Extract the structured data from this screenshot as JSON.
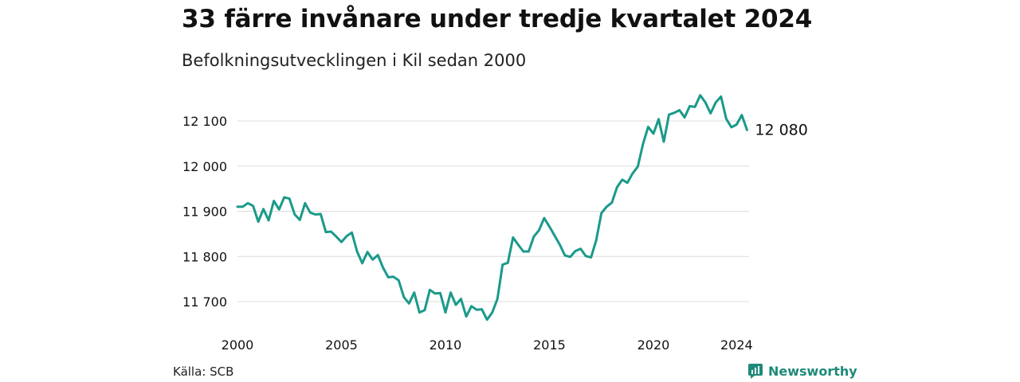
{
  "title": "33 färre invånare under tredje kvartalet 2024",
  "subtitle": "Befolkningsutvecklingen i Kil sedan 2000",
  "source": "Källa: SCB",
  "brand": {
    "name": "Newsworthy",
    "color": "#1f8a7a"
  },
  "chart_data": {
    "type": "line",
    "title": "33 färre invånare under tredje kvartalet 2024",
    "subtitle": "Befolkningsutvecklingen i Kil sedan 2000",
    "xlabel": "",
    "ylabel": "",
    "x_ticks": [
      "2000",
      "2005",
      "2010",
      "2015",
      "2020",
      "2024"
    ],
    "y_ticks": [
      "11 700",
      "11 800",
      "11 900",
      "12 000",
      "12 100"
    ],
    "xlim": [
      2000,
      2024.6
    ],
    "ylim": [
      11660,
      12180
    ],
    "grid": true,
    "line_color": "#1a9a8a",
    "end_label": "12 080",
    "series": [
      {
        "x": [
          2000,
          2000.25,
          2000.5,
          2000.75,
          2001,
          2001.25,
          2001.5,
          2001.75,
          2002,
          2002.25,
          2002.5,
          2002.75,
          2003,
          2003.25,
          2003.5,
          2003.75,
          2004,
          2004.25,
          2004.5,
          2004.75,
          2005,
          2005.25,
          2005.5,
          2005.75,
          2006,
          2006.25,
          2006.5,
          2006.75,
          2007,
          2007.25,
          2007.5,
          2007.75,
          2008,
          2008.25,
          2008.5,
          2008.75,
          2009,
          2009.25,
          2009.5,
          2009.75,
          2010,
          2010.25,
          2010.5,
          2010.75,
          2011,
          2011.25,
          2011.5,
          2011.75,
          2012,
          2012.25,
          2012.5,
          2012.75,
          2013,
          2013.25,
          2013.5,
          2013.75,
          2014,
          2014.25,
          2014.5,
          2014.75,
          2015,
          2015.25,
          2015.5,
          2015.75,
          2016,
          2016.25,
          2016.5,
          2016.75,
          2017,
          2017.25,
          2017.5,
          2017.75,
          2018,
          2018.25,
          2018.5,
          2018.75,
          2019,
          2019.25,
          2019.5,
          2019.75,
          2020,
          2020.25,
          2020.5,
          2020.75,
          2021,
          2021.25,
          2021.5,
          2021.75,
          2022,
          2022.25,
          2022.5,
          2022.75,
          2023,
          2023.25,
          2023.5,
          2023.75,
          2024,
          2024.25,
          2024.5
        ],
        "values": [
          11910,
          11910,
          11918,
          11912,
          11877,
          11905,
          11880,
          11923,
          11904,
          11931,
          11928,
          11893,
          11881,
          11918,
          11897,
          11893,
          11894,
          11854,
          11855,
          11844,
          11832,
          11845,
          11853,
          11811,
          11785,
          11810,
          11793,
          11803,
          11775,
          11754,
          11755,
          11747,
          11710,
          11696,
          11720,
          11676,
          11681,
          11726,
          11718,
          11719,
          11676,
          11720,
          11693,
          11706,
          11667,
          11690,
          11682,
          11683,
          11660,
          11676,
          11706,
          11782,
          11786,
          11842,
          11826,
          11811,
          11811,
          11844,
          11858,
          11885,
          11866,
          11846,
          11826,
          11802,
          11799,
          11812,
          11817,
          11801,
          11798,
          11836,
          11896,
          11910,
          11919,
          11953,
          11970,
          11963,
          11984,
          11999,
          12049,
          12087,
          12072,
          12104,
          12054,
          12114,
          12118,
          12124,
          12108,
          12133,
          12131,
          12157,
          12141,
          12117,
          12141,
          12154,
          12105,
          12086,
          12092,
          12113,
          12080
        ]
      }
    ]
  }
}
